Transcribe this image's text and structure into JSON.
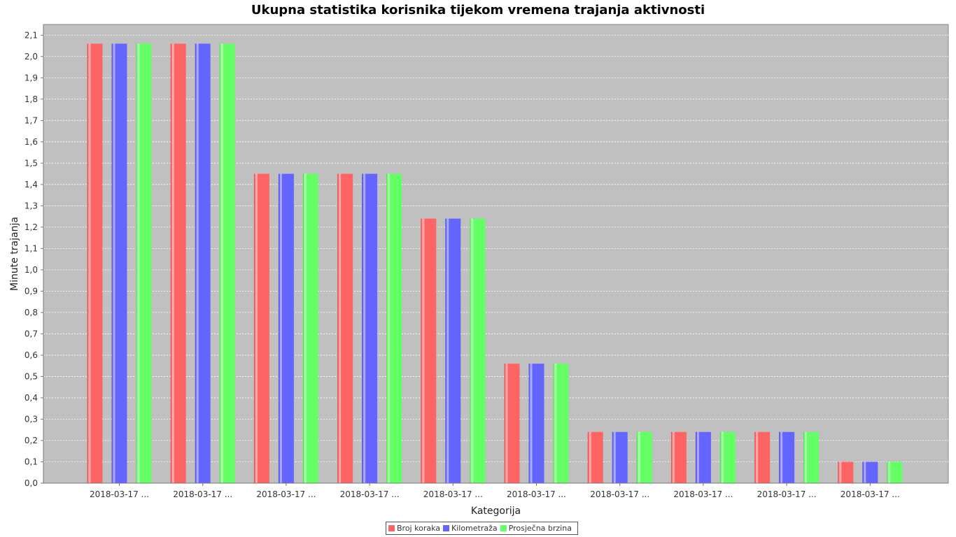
{
  "chart_data": {
    "type": "bar",
    "title": "Ukupna statistika korisnika tijekom vremena trajanja aktivnosti",
    "xlabel": "Kategorija",
    "ylabel": "Minute trajanja",
    "ylim": [
      0,
      2.15
    ],
    "y_ticks": [
      "0,0",
      "0,1",
      "0,2",
      "0,3",
      "0,4",
      "0,5",
      "0,6",
      "0,7",
      "0,8",
      "0,9",
      "1,0",
      "1,1",
      "1,2",
      "1,3",
      "1,4",
      "1,5",
      "1,6",
      "1,7",
      "1,8",
      "1,9",
      "2,0",
      "2,1"
    ],
    "categories": [
      "2018-03-17 ...",
      "2018-03-17 ...",
      "2018-03-17 ...",
      "2018-03-17 ...",
      "2018-03-17 ...",
      "2018-03-17 ...",
      "2018-03-17 ...",
      "2018-03-17 ...",
      "2018-03-17 ...",
      "2018-03-17 ..."
    ],
    "series": [
      {
        "name": "Broj koraka",
        "color": "#ff6464",
        "values": [
          2.06,
          2.06,
          1.45,
          1.45,
          1.24,
          0.56,
          0.24,
          0.24,
          0.24,
          0.1
        ]
      },
      {
        "name": "Kilometraža",
        "color": "#6464ff",
        "values": [
          2.06,
          2.06,
          1.45,
          1.45,
          1.24,
          0.56,
          0.24,
          0.24,
          0.24,
          0.1
        ]
      },
      {
        "name": "Prosječna brzina",
        "color": "#64ff64",
        "values": [
          2.06,
          2.06,
          1.45,
          1.45,
          1.24,
          0.56,
          0.24,
          0.24,
          0.24,
          0.1
        ]
      }
    ],
    "plot_background": "#c0c0c0",
    "grid": true,
    "legend_position": "bottom"
  }
}
